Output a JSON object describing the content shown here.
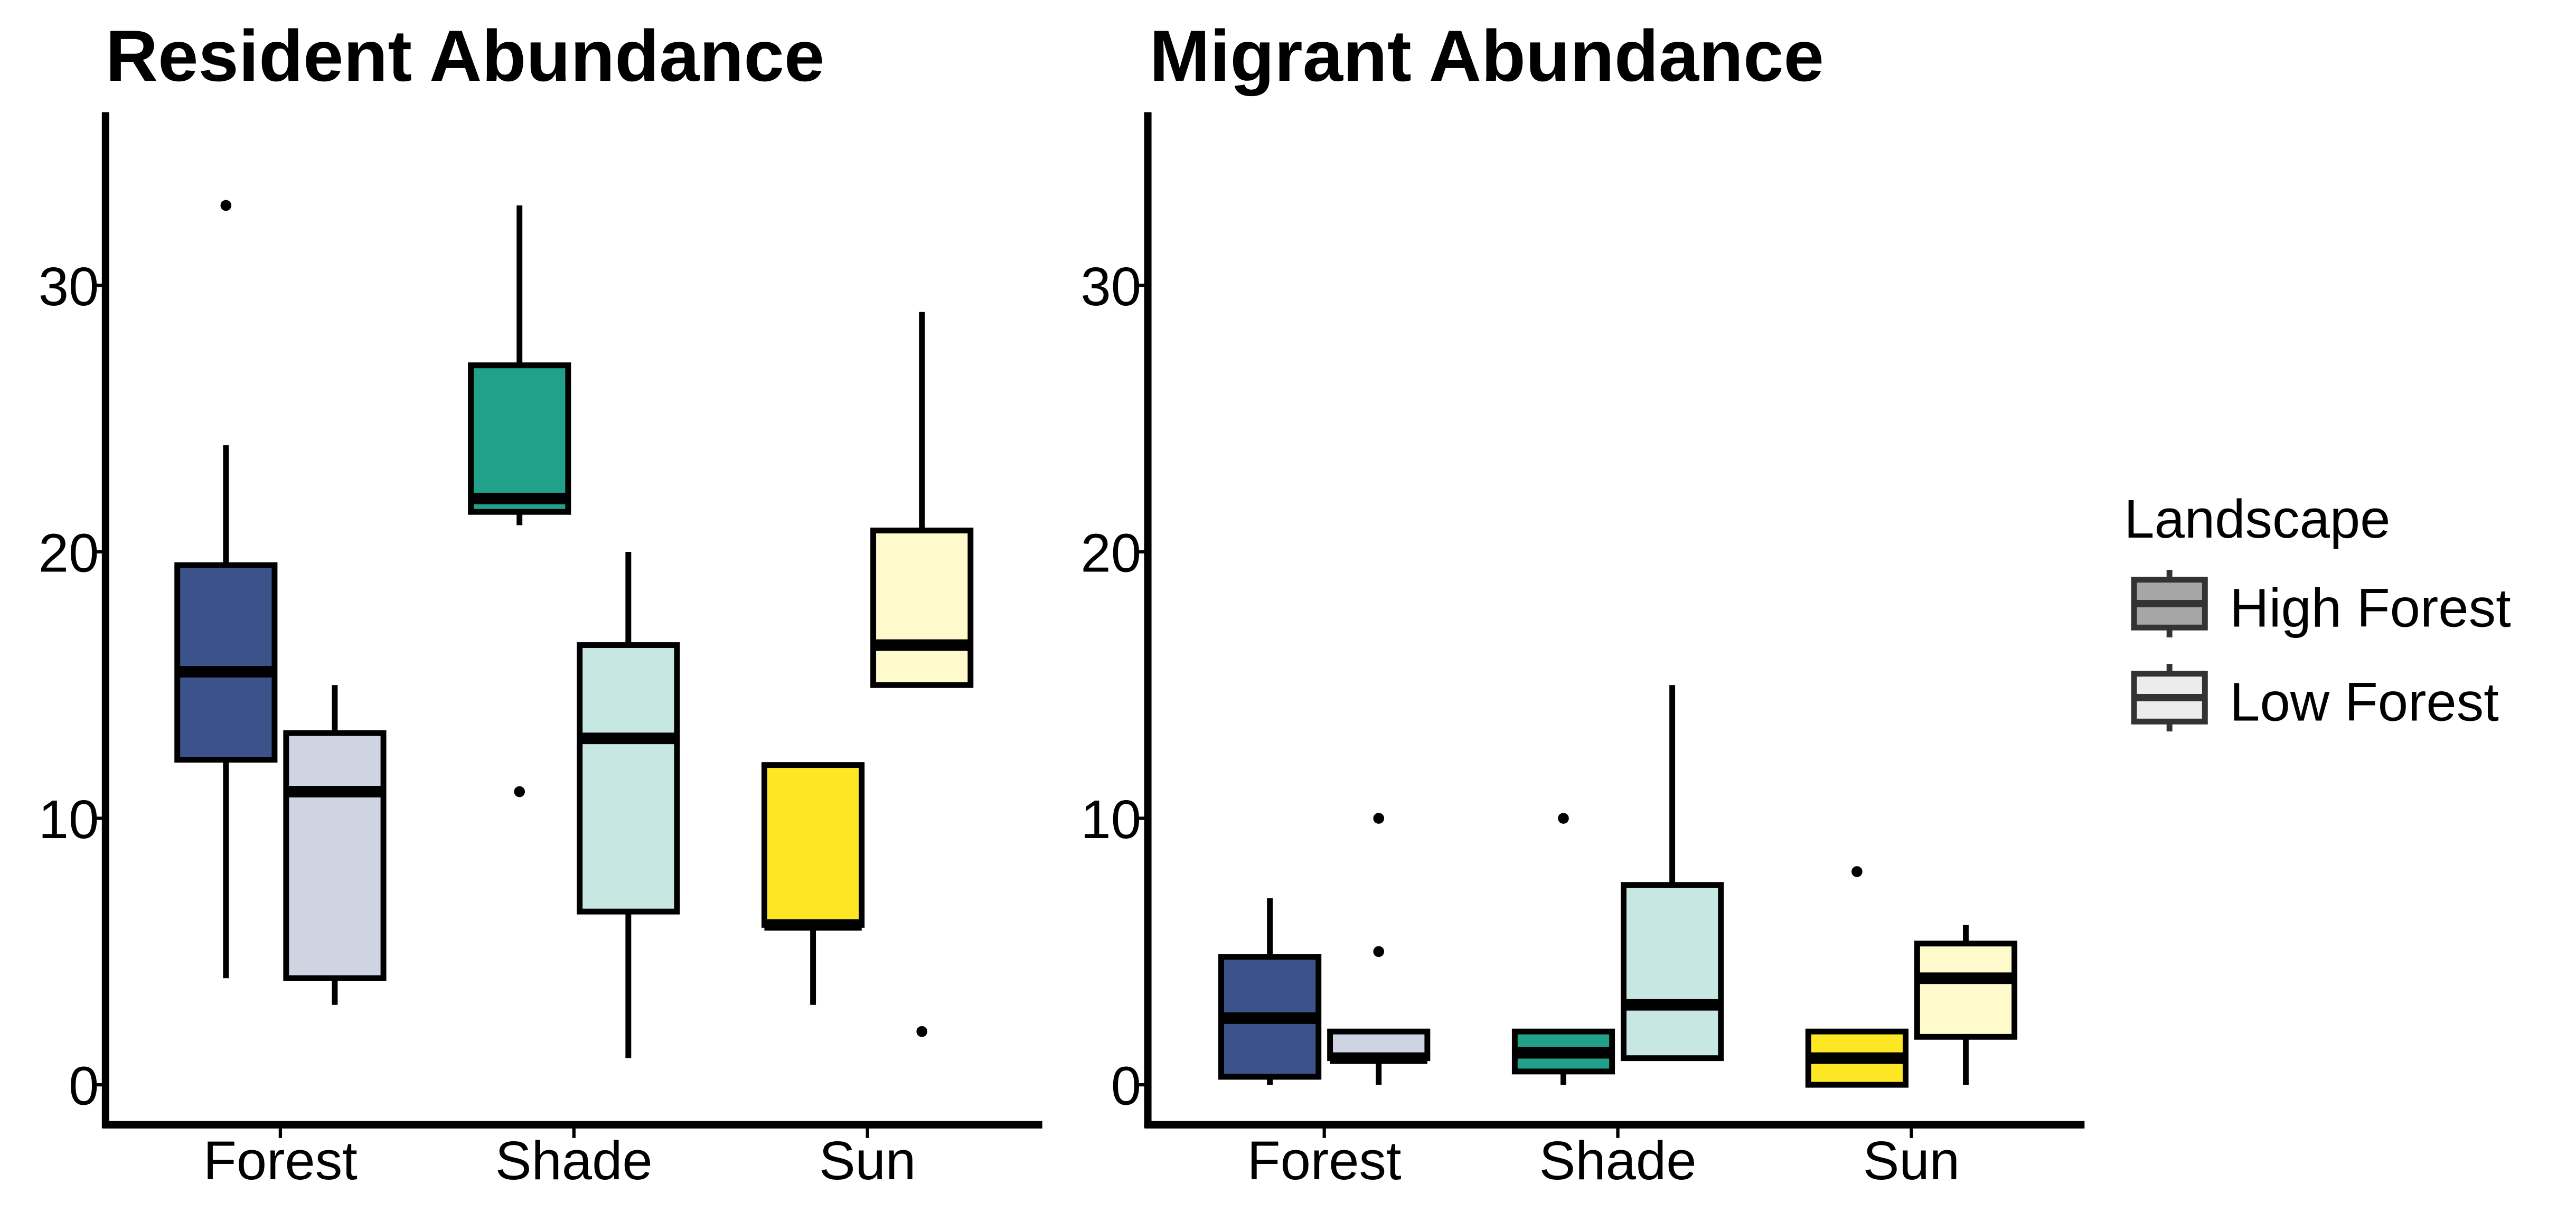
{
  "chart_data": {
    "type": "boxplot",
    "categories": [
      "Forest",
      "Shade",
      "Sun"
    ],
    "groups": [
      "High Forest",
      "Low Forest"
    ],
    "ylim": [
      -1.5,
      36.5
    ],
    "yticks": [
      0,
      10,
      20,
      30
    ],
    "grid": false,
    "legend": {
      "title": "Landscape",
      "position": "right",
      "entries": [
        {
          "label": "High Forest",
          "color": "#a6a6a6"
        },
        {
          "label": "Low Forest",
          "color": "#ececec"
        }
      ]
    },
    "colors": {
      "Forest": {
        "High Forest": "#3b528b",
        "Low Forest": "#ced4e2"
      },
      "Shade": {
        "High Forest": "#21a08a",
        "Low Forest": "#c7e7e2"
      },
      "Sun": {
        "High Forest": "#fde725",
        "Low Forest": "#fffacc"
      }
    },
    "panels": [
      {
        "title": "Resident Abundance",
        "boxes": [
          {
            "category": "Forest",
            "group": "High Forest",
            "whisker_low": 4,
            "q1": 12.2,
            "median": 15.5,
            "q3": 19.5,
            "whisker_high": 24,
            "outliers": [
              33
            ]
          },
          {
            "category": "Forest",
            "group": "Low Forest",
            "whisker_low": 3,
            "q1": 4,
            "median": 11,
            "q3": 13.2,
            "whisker_high": 15,
            "outliers": []
          },
          {
            "category": "Shade",
            "group": "High Forest",
            "whisker_low": 21,
            "q1": 21.5,
            "median": 22,
            "q3": 27,
            "whisker_high": 33,
            "outliers": [
              11
            ]
          },
          {
            "category": "Shade",
            "group": "Low Forest",
            "whisker_low": 1,
            "q1": 6.5,
            "median": 13,
            "q3": 16.5,
            "whisker_high": 20,
            "outliers": []
          },
          {
            "category": "Sun",
            "group": "High Forest",
            "whisker_low": 3,
            "q1": 6,
            "median": 6,
            "q3": 12,
            "whisker_high": 12,
            "outliers": []
          },
          {
            "category": "Sun",
            "group": "Low Forest",
            "whisker_low": 15,
            "q1": 15,
            "median": 16.5,
            "q3": 20.8,
            "whisker_high": 29,
            "outliers": [
              2
            ]
          }
        ]
      },
      {
        "title": "Migrant Abundance",
        "boxes": [
          {
            "category": "Forest",
            "group": "High Forest",
            "whisker_low": 0,
            "q1": 0.3,
            "median": 2.5,
            "q3": 4.8,
            "whisker_high": 7,
            "outliers": []
          },
          {
            "category": "Forest",
            "group": "Low Forest",
            "whisker_low": 0,
            "q1": 1,
            "median": 1,
            "q3": 2,
            "whisker_high": 2,
            "outliers": [
              5,
              10
            ]
          },
          {
            "category": "Shade",
            "group": "High Forest",
            "whisker_low": 0,
            "q1": 0.5,
            "median": 1.2,
            "q3": 2,
            "whisker_high": 2,
            "outliers": [
              10
            ]
          },
          {
            "category": "Shade",
            "group": "Low Forest",
            "whisker_low": 1,
            "q1": 1,
            "median": 3,
            "q3": 7.5,
            "whisker_high": 15,
            "outliers": []
          },
          {
            "category": "Sun",
            "group": "High Forest",
            "whisker_low": 0,
            "q1": 0,
            "median": 1,
            "q3": 2,
            "whisker_high": 2,
            "outliers": [
              8
            ]
          },
          {
            "category": "Sun",
            "group": "Low Forest",
            "whisker_low": 0,
            "q1": 1.8,
            "median": 4,
            "q3": 5.3,
            "whisker_high": 6,
            "outliers": []
          }
        ]
      }
    ]
  }
}
